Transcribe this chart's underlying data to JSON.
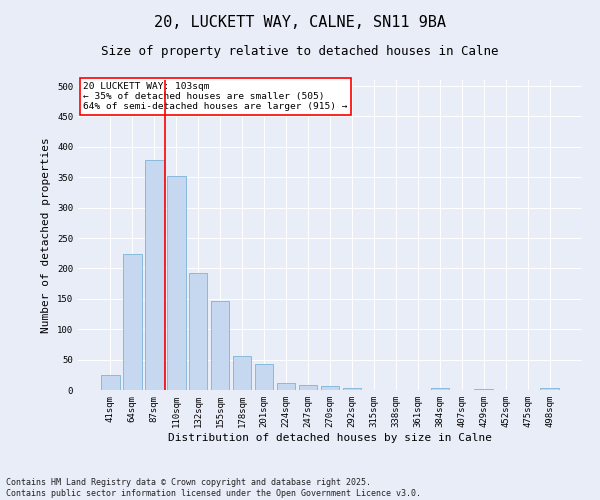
{
  "title1": "20, LUCKETT WAY, CALNE, SN11 9BA",
  "title2": "Size of property relative to detached houses in Calne",
  "xlabel": "Distribution of detached houses by size in Calne",
  "ylabel": "Number of detached properties",
  "categories": [
    "41sqm",
    "64sqm",
    "87sqm",
    "110sqm",
    "132sqm",
    "155sqm",
    "178sqm",
    "201sqm",
    "224sqm",
    "247sqm",
    "270sqm",
    "292sqm",
    "315sqm",
    "338sqm",
    "361sqm",
    "384sqm",
    "407sqm",
    "429sqm",
    "452sqm",
    "475sqm",
    "498sqm"
  ],
  "values": [
    25,
    224,
    378,
    352,
    193,
    147,
    56,
    42,
    12,
    9,
    7,
    4,
    0,
    0,
    0,
    4,
    0,
    1,
    0,
    0,
    4
  ],
  "bar_color": "#c5d8f0",
  "bar_edge_color": "#6aaad4",
  "vline_x": 2.5,
  "vline_color": "red",
  "annotation_text": "20 LUCKETT WAY: 103sqm\n← 35% of detached houses are smaller (505)\n64% of semi-detached houses are larger (915) →",
  "annotation_box_color": "white",
  "annotation_box_edge": "red",
  "ylim": [
    0,
    510
  ],
  "yticks": [
    0,
    50,
    100,
    150,
    200,
    250,
    300,
    350,
    400,
    450,
    500
  ],
  "footer1": "Contains HM Land Registry data © Crown copyright and database right 2025.",
  "footer2": "Contains public sector information licensed under the Open Government Licence v3.0.",
  "bg_color": "#e8edf8",
  "plot_bg_color": "#e8edf8",
  "title_fontsize": 11,
  "subtitle_fontsize": 9,
  "tick_fontsize": 6.5,
  "label_fontsize": 8,
  "footer_fontsize": 6
}
